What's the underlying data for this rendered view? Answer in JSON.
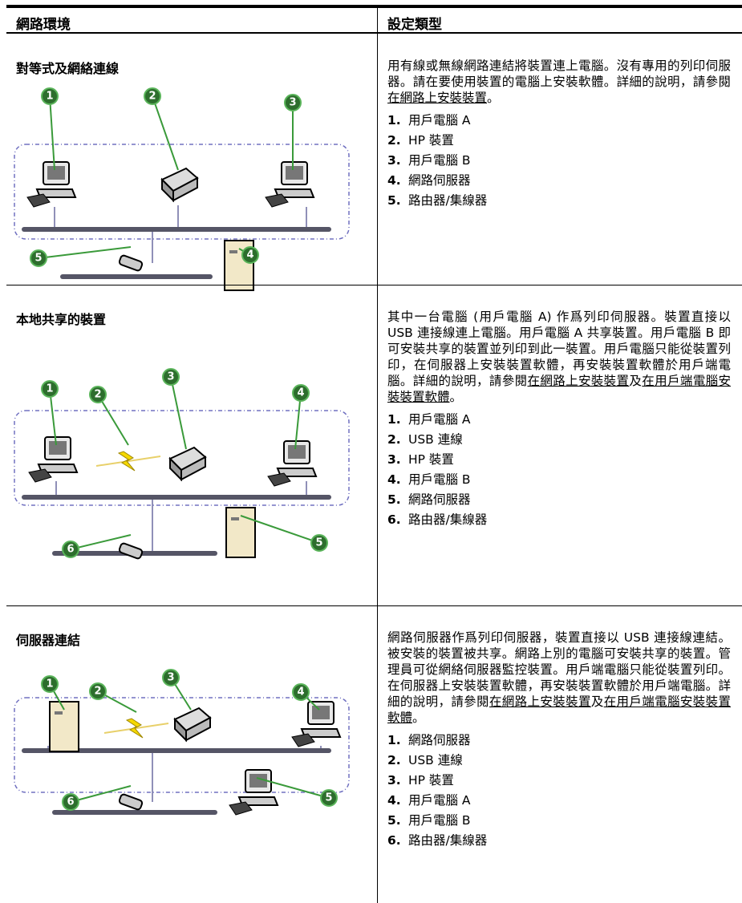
{
  "header": {
    "columns": [
      "網路環境",
      "設定類型"
    ]
  },
  "rows": [
    {
      "title": "對等式及網絡連線",
      "callouts": [
        1,
        2,
        3,
        4,
        5
      ],
      "description": [
        {
          "text": "用有線或無線網路連結將裝置連上電腦。沒有專用的列印伺服器。請在要使用裝置的電腦上安裝軟體。詳細的說明，請參閱"
        },
        {
          "link": "在網路上安裝裝置"
        },
        {
          "text": "。"
        }
      ],
      "items": [
        {
          "number": "1.",
          "label": "用戶電腦 A"
        },
        {
          "number": "2.",
          "label": "HP 裝置"
        },
        {
          "number": "3.",
          "label": "用戶電腦 B"
        },
        {
          "number": "4.",
          "label": "網路伺服器"
        },
        {
          "number": "5.",
          "label": "路由器/集線器"
        }
      ]
    },
    {
      "title": "本地共享的裝置",
      "callouts": [
        1,
        2,
        3,
        4,
        5,
        6
      ],
      "description": [
        {
          "text": "其中一台電腦 (用戶電腦 A) 作爲列印伺服器。裝置直接以 USB 連接線連上電腦。用戶電腦 A 共享裝置。用戶電腦 B 即可安裝共享的裝置並列印到此一裝置。用戶電腦只能從裝置列印，在伺服器上安裝裝置軟體，再安裝裝置軟體於用戶端電腦。詳細的說明，請參閱"
        },
        {
          "link": "在網路上安裝裝置"
        },
        {
          "text": "及"
        },
        {
          "link": "在用戶端電腦安裝裝置軟體"
        },
        {
          "text": "。"
        }
      ],
      "items": [
        {
          "number": "1.",
          "label": "用戶電腦 A"
        },
        {
          "number": "2.",
          "label": "USB 連線"
        },
        {
          "number": "3.",
          "label": "HP 裝置"
        },
        {
          "number": "4.",
          "label": "用戶電腦 B"
        },
        {
          "number": "5.",
          "label": "網路伺服器"
        },
        {
          "number": "6.",
          "label": "路由器/集線器"
        }
      ]
    },
    {
      "title": "伺服器連結",
      "callouts": [
        1,
        2,
        3,
        4,
        5,
        6
      ],
      "description": [
        {
          "text": "網路伺服器作爲列印伺服器，裝置直接以 USB 連接線連結。被安裝的裝置被共享。網路上別的電腦可安裝共享的裝置。管理員可從網絡伺服器監控裝置。用戶端電腦只能從裝置列印。在伺服器上安裝裝置軟體，再安裝裝置軟體於用戶端電腦。詳細的說明，請參閱"
        },
        {
          "link": "在網路上安裝裝置"
        },
        {
          "text": "及"
        },
        {
          "link": "在用戶端電腦安裝裝置軟體"
        },
        {
          "text": "。"
        }
      ],
      "items": [
        {
          "number": "1.",
          "label": "網路伺服器"
        },
        {
          "number": "2.",
          "label": "USB 連線"
        },
        {
          "number": "3.",
          "label": "HP 裝置"
        },
        {
          "number": "4.",
          "label": "用戶電腦 A"
        },
        {
          "number": "5.",
          "label": "用戶電腦 B"
        },
        {
          "number": "6.",
          "label": "路由器/集線器"
        }
      ]
    }
  ]
}
